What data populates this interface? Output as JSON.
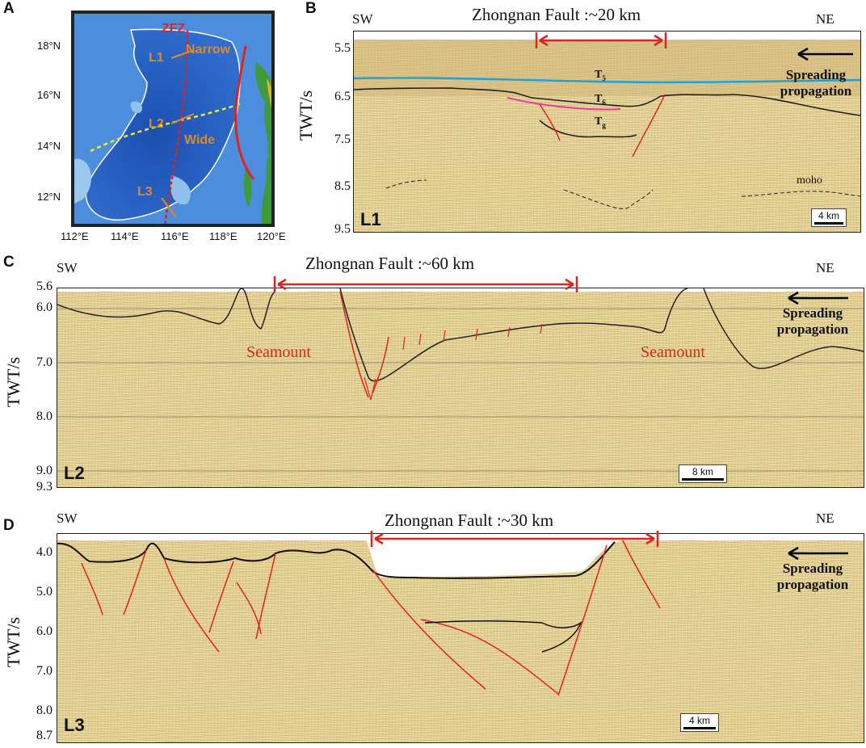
{
  "panel_a": {
    "label": "A",
    "lat_ticks": [
      "18°N",
      "16°N",
      "14°N",
      "12°N"
    ],
    "lon_ticks": [
      "112°E",
      "114°E",
      "116°E",
      "118°E",
      "120°E"
    ],
    "zfz": "ZFZ",
    "l1": "L1",
    "l2": "L2",
    "l3": "L3",
    "narrow": "Narrow",
    "wide": "Wide",
    "colors": {
      "ocean_deep": "#1f5fbf",
      "ocean_shelf": "#4a8fd8",
      "land": "#3f9a3a",
      "fault": "#e0231c",
      "boundary": "#f2e430",
      "line": "#e08a1e"
    }
  },
  "panel_b": {
    "label": "B",
    "sw": "SW",
    "ne": "NE",
    "title": "Zhongnan Fault :~20 km",
    "ylabel": "TWT/s",
    "ticks": [
      "5.5",
      "6.5",
      "7.5",
      "8.5",
      "9.5"
    ],
    "t5": "T",
    "t5s": "5",
    "t6": "T",
    "t6s": "6",
    "tg": "T",
    "tgs": "g",
    "moho": "moho",
    "spread1": "Spreading",
    "spread2": "propagation",
    "line": "L1",
    "scale": "4 km"
  },
  "panel_c": {
    "label": "C",
    "sw": "SW",
    "ne": "NE",
    "title": "Zhongnan Fault :~60 km",
    "ylabel": "TWT/s",
    "ticks": [
      "5.6",
      "6.0",
      "7.0",
      "8.0",
      "9.0",
      "9.3"
    ],
    "seamount_left": "Seamount",
    "seamount_right": "Seamount",
    "spread1": "Spreading",
    "spread2": "propagation",
    "line": "L2",
    "scale": "8 km"
  },
  "panel_d": {
    "label": "D",
    "sw": "SW",
    "ne": "NE",
    "title": "Zhongnan Fault :~30 km",
    "ylabel": "TWT/s",
    "ticks": [
      "4.0",
      "5.0",
      "6.0",
      "7.0",
      "8.0",
      "8.7"
    ],
    "spread1": "Spreading",
    "spread2": "propagation",
    "line": "L3",
    "scale": "4 km"
  }
}
